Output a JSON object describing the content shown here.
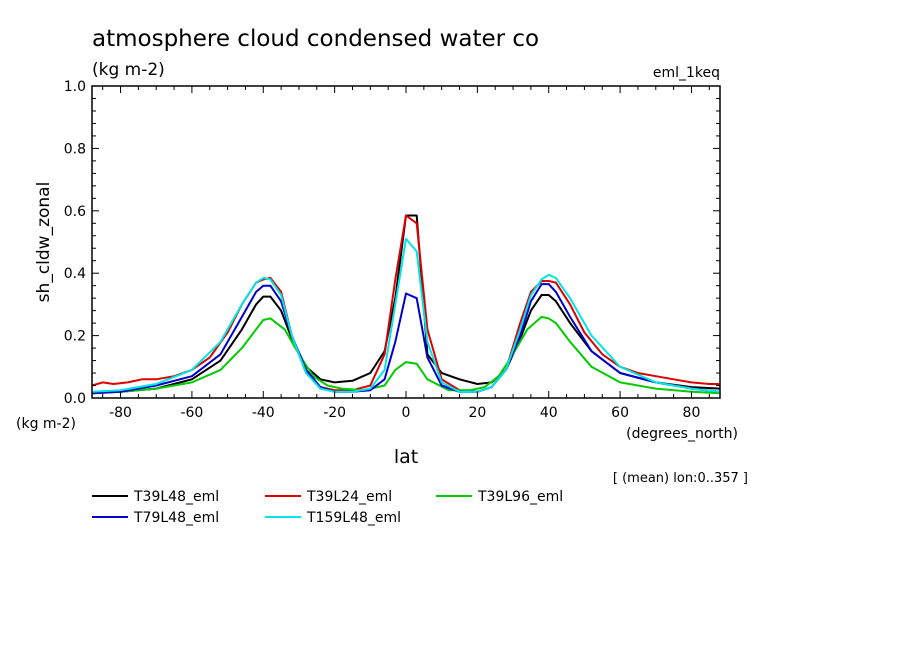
{
  "chart_data": {
    "type": "line",
    "title": "atmosphere cloud condensed water co",
    "units_label": "(kg m-2)",
    "units_corner": "(kg m-2)",
    "dataset_label": "eml_1keq",
    "xlabel": "lat",
    "x_units": "(degrees_north)",
    "ylabel": "sh_cldw_zonal",
    "footnote": "[ (mean) lon:0..357 ]",
    "xlim": [
      -88,
      88
    ],
    "ylim": [
      0,
      1.0
    ],
    "x_ticks": [
      -80,
      -60,
      -40,
      -20,
      0,
      20,
      40,
      60,
      80
    ],
    "x_tick_labels": [
      "-80",
      "-60",
      "-40",
      "-20",
      "0",
      "20",
      "40",
      "60",
      "80"
    ],
    "y_ticks": [
      0,
      0.2,
      0.4,
      0.6,
      0.8,
      1.0
    ],
    "y_tick_labels": [
      "0.0",
      "0.2",
      "0.4",
      "0.6",
      "0.8",
      "1.0"
    ],
    "grid": false,
    "legend_placement": "bottom",
    "series": [
      {
        "name": "T39L48_eml",
        "color": "#000000",
        "x": [
          -88,
          -80,
          -70,
          -60,
          -52,
          -46,
          -42,
          -40,
          -38,
          -35,
          -32,
          -28,
          -24,
          -20,
          -15,
          -10,
          -6,
          -3,
          0,
          3,
          6,
          10,
          15,
          20,
          24,
          28,
          32,
          35,
          38,
          40,
          42,
          46,
          52,
          60,
          70,
          80,
          88
        ],
        "y": [
          0.015,
          0.02,
          0.03,
          0.06,
          0.12,
          0.22,
          0.3,
          0.325,
          0.325,
          0.28,
          0.19,
          0.1,
          0.06,
          0.05,
          0.055,
          0.08,
          0.15,
          0.32,
          0.585,
          0.585,
          0.14,
          0.08,
          0.06,
          0.045,
          0.05,
          0.09,
          0.19,
          0.28,
          0.33,
          0.33,
          0.31,
          0.24,
          0.15,
          0.08,
          0.05,
          0.035,
          0.03
        ]
      },
      {
        "name": "T39L24_eml",
        "color": "#dd0000",
        "x": [
          -88,
          -85,
          -82,
          -78,
          -74,
          -70,
          -65,
          -60,
          -55,
          -50,
          -46,
          -42,
          -40,
          -38,
          -35,
          -32,
          -28,
          -24,
          -20,
          -15,
          -10,
          -6,
          -3,
          0,
          3,
          6,
          10,
          15,
          20,
          24,
          28,
          32,
          35,
          38,
          40,
          42,
          46,
          50,
          55,
          60,
          65,
          70,
          75,
          80,
          85,
          88
        ],
        "y": [
          0.04,
          0.05,
          0.045,
          0.05,
          0.06,
          0.06,
          0.07,
          0.09,
          0.13,
          0.21,
          0.3,
          0.37,
          0.38,
          0.385,
          0.34,
          0.2,
          0.08,
          0.035,
          0.025,
          0.025,
          0.04,
          0.14,
          0.38,
          0.585,
          0.56,
          0.22,
          0.06,
          0.025,
          0.02,
          0.035,
          0.09,
          0.24,
          0.34,
          0.375,
          0.375,
          0.37,
          0.3,
          0.21,
          0.14,
          0.1,
          0.08,
          0.07,
          0.06,
          0.05,
          0.045,
          0.045
        ]
      },
      {
        "name": "T39L96_eml",
        "color": "#00cc00",
        "x": [
          -88,
          -80,
          -70,
          -60,
          -52,
          -46,
          -42,
          -40,
          -38,
          -34,
          -30,
          -26,
          -22,
          -18,
          -12,
          -6,
          -3,
          0,
          3,
          6,
          12,
          18,
          22,
          26,
          30,
          34,
          38,
          40,
          42,
          46,
          52,
          60,
          70,
          80,
          88
        ],
        "y": [
          0.015,
          0.02,
          0.03,
          0.05,
          0.09,
          0.16,
          0.22,
          0.25,
          0.255,
          0.22,
          0.14,
          0.07,
          0.04,
          0.03,
          0.025,
          0.04,
          0.09,
          0.115,
          0.11,
          0.06,
          0.025,
          0.025,
          0.035,
          0.07,
          0.14,
          0.22,
          0.26,
          0.255,
          0.24,
          0.18,
          0.1,
          0.05,
          0.03,
          0.02,
          0.015
        ]
      },
      {
        "name": "T79L48_eml",
        "color": "#0000cc",
        "x": [
          -88,
          -80,
          -70,
          -60,
          -52,
          -46,
          -42,
          -40,
          -38,
          -35,
          -32,
          -28,
          -24,
          -20,
          -15,
          -10,
          -6,
          -3,
          0,
          3,
          6,
          10,
          15,
          20,
          24,
          28,
          32,
          35,
          38,
          40,
          42,
          46,
          52,
          60,
          70,
          80,
          88
        ],
        "y": [
          0.015,
          0.02,
          0.04,
          0.07,
          0.14,
          0.26,
          0.34,
          0.36,
          0.36,
          0.31,
          0.2,
          0.09,
          0.035,
          0.02,
          0.02,
          0.025,
          0.06,
          0.18,
          0.335,
          0.32,
          0.13,
          0.04,
          0.02,
          0.02,
          0.035,
          0.09,
          0.2,
          0.31,
          0.365,
          0.365,
          0.34,
          0.26,
          0.15,
          0.08,
          0.05,
          0.03,
          0.02
        ]
      },
      {
        "name": "T159L48_eml",
        "color": "#00e5e5",
        "x": [
          -88,
          -80,
          -70,
          -60,
          -52,
          -46,
          -42,
          -40,
          -38,
          -35,
          -32,
          -28,
          -24,
          -20,
          -15,
          -10,
          -6,
          -3,
          0,
          3,
          6,
          10,
          15,
          20,
          24,
          28,
          32,
          35,
          38,
          40,
          42,
          46,
          52,
          60,
          70,
          80,
          88
        ],
        "y": [
          0.02,
          0.025,
          0.045,
          0.09,
          0.18,
          0.3,
          0.37,
          0.385,
          0.38,
          0.33,
          0.2,
          0.08,
          0.03,
          0.02,
          0.02,
          0.03,
          0.09,
          0.3,
          0.51,
          0.47,
          0.18,
          0.05,
          0.02,
          0.02,
          0.035,
          0.09,
          0.22,
          0.33,
          0.38,
          0.395,
          0.385,
          0.32,
          0.2,
          0.1,
          0.05,
          0.03,
          0.02
        ]
      }
    ]
  }
}
